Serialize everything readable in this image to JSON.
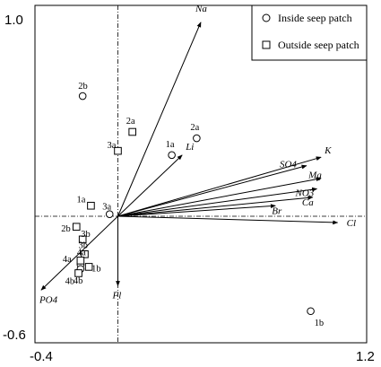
{
  "chart_data": {
    "type": "scatter",
    "title": "",
    "xlabel": "",
    "ylabel": "",
    "xlim": [
      -0.4,
      1.2
    ],
    "ylim": [
      -0.6,
      1.0
    ],
    "x_tick_labels": [
      "-0.4",
      "1.2"
    ],
    "y_tick_labels": [
      "1.0",
      "-0.6"
    ],
    "reference_lines": {
      "x": 0,
      "y": 0,
      "style": "dash-dot"
    },
    "grid": false,
    "legend_position": "top-right",
    "legend": [
      {
        "marker": "circle",
        "label": "Inside seep patch"
      },
      {
        "marker": "square",
        "label": "Outside seep patch"
      }
    ],
    "vectors": [
      {
        "label": "Na",
        "x": 0.4,
        "y": 0.92
      },
      {
        "label": "Li",
        "x": 0.31,
        "y": 0.29
      },
      {
        "label": "K",
        "x": 0.98,
        "y": 0.28
      },
      {
        "label": "SO4",
        "x": 0.91,
        "y": 0.24
      },
      {
        "label": "Mg",
        "x": 0.98,
        "y": 0.18
      },
      {
        "label": "NO3",
        "x": 0.96,
        "y": 0.13
      },
      {
        "label": "Ca",
        "x": 0.94,
        "y": 0.09
      },
      {
        "label": "Br",
        "x": 0.76,
        "y": 0.05
      },
      {
        "label": "Cl",
        "x": 1.06,
        "y": -0.03
      },
      {
        "label": "Fl",
        "x": 0.0,
        "y": -0.33
      },
      {
        "label": "PO4",
        "x": -0.37,
        "y": -0.35
      }
    ],
    "series": [
      {
        "name": "Inside seep patch",
        "marker": "circle",
        "points": [
          {
            "label": "2b",
            "x": -0.17,
            "y": 0.57
          },
          {
            "label": "2a",
            "x": 0.38,
            "y": 0.37
          },
          {
            "label": "1a",
            "x": 0.26,
            "y": 0.29
          },
          {
            "label": "3a",
            "x": -0.04,
            "y": 0.01
          },
          {
            "label": "4a",
            "x": -0.18,
            "y": -0.23
          },
          {
            "label": "4b",
            "x": -0.18,
            "y": -0.25
          },
          {
            "label": "1b",
            "x": 0.93,
            "y": -0.45
          }
        ]
      },
      {
        "name": "Outside seep patch",
        "marker": "square",
        "points": [
          {
            "label": "2a",
            "x": 0.07,
            "y": 0.4
          },
          {
            "label": "3a",
            "x": 0.0,
            "y": 0.31
          },
          {
            "label": "1a",
            "x": -0.13,
            "y": 0.05
          },
          {
            "label": "2b",
            "x": -0.2,
            "y": -0.05
          },
          {
            "label": "3b",
            "x": -0.17,
            "y": -0.11
          },
          {
            "label": "3b",
            "x": -0.16,
            "y": -0.18
          },
          {
            "label": "4a",
            "x": -0.18,
            "y": -0.21
          },
          {
            "label": "1b",
            "x": -0.14,
            "y": -0.24
          },
          {
            "label": "4b",
            "x": -0.19,
            "y": -0.27
          }
        ]
      }
    ]
  }
}
